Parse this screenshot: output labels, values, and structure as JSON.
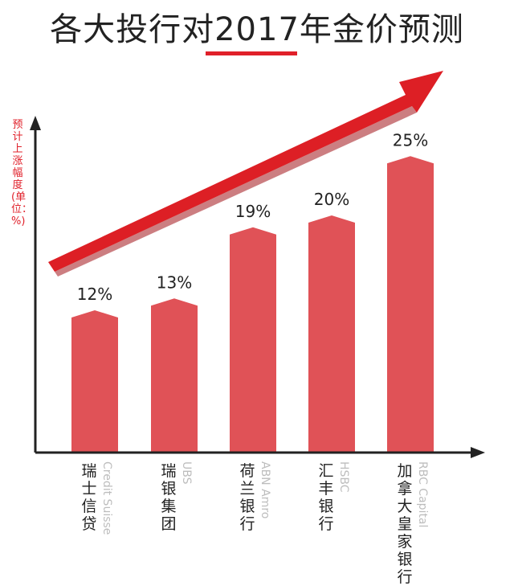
{
  "title": "各大投行对2017年金价预测",
  "chart_data": {
    "type": "bar",
    "ylabel": "预计上涨幅度(单位：%)",
    "categories": [
      {
        "zh": "瑞士信贷",
        "en": "Credit Suisse"
      },
      {
        "zh": "瑞银集团",
        "en": "UBS"
      },
      {
        "zh": "荷兰银行",
        "en": "ABN Amro"
      },
      {
        "zh": "汇丰银行",
        "en": "HSBC"
      },
      {
        "zh": "加拿大皇家银行",
        "en": "RBC Capital"
      }
    ],
    "values": [
      12,
      13,
      19,
      20,
      25
    ],
    "value_labels": [
      "12%",
      "13%",
      "19%",
      "20%",
      "25%"
    ],
    "colors": {
      "bar": "#e05257",
      "arrow": "#dd1f25",
      "axis": "#222222"
    }
  }
}
